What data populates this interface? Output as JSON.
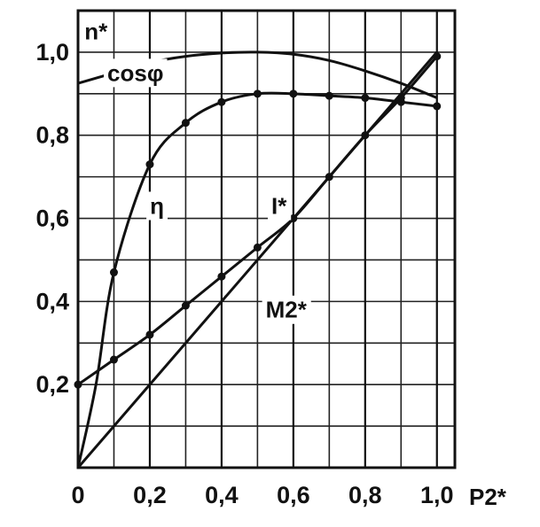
{
  "chart_data": {
    "type": "line",
    "xlabel": "P2*",
    "ylabel": "",
    "xlim": [
      0,
      1.05
    ],
    "ylim": [
      0,
      1.1
    ],
    "grid": true,
    "x_ticks": [
      "0",
      "0,2",
      "0,4",
      "0,6",
      "0,8",
      "1,0"
    ],
    "y_ticks": [
      "0,2",
      "0,4",
      "0,6",
      "0,8",
      "1,0"
    ],
    "series": [
      {
        "name": "n*",
        "marker": false,
        "x": [
          0.0,
          0.1,
          0.2,
          0.3,
          0.4,
          0.5,
          0.6,
          0.7,
          0.8,
          0.9,
          1.0
        ],
        "y": [
          0.925,
          0.95,
          0.975,
          0.99,
          0.998,
          1.0,
          0.995,
          0.98,
          0.955,
          0.925,
          0.89
        ]
      },
      {
        "name": "cosφ",
        "marker": true,
        "x": [
          0.1,
          0.2,
          0.3,
          0.4,
          0.5,
          0.6,
          0.7,
          0.8,
          0.9,
          1.0
        ],
        "y": [
          0.47,
          0.73,
          0.83,
          0.88,
          0.9,
          0.9,
          0.895,
          0.89,
          0.88,
          0.87
        ]
      },
      {
        "name": "I*",
        "marker": true,
        "x": [
          0.0,
          0.1,
          0.2,
          0.3,
          0.4,
          0.5,
          0.6,
          0.7,
          0.8,
          0.9,
          1.0
        ],
        "y": [
          0.2,
          0.26,
          0.32,
          0.39,
          0.46,
          0.53,
          0.6,
          0.7,
          0.8,
          0.89,
          0.99
        ]
      },
      {
        "name": "M2*",
        "marker": false,
        "x": [
          0.0,
          1.0
        ],
        "y": [
          0.0,
          1.0
        ]
      }
    ],
    "annotations": [
      {
        "text": "n*",
        "x": 0.05,
        "y": 1.05
      },
      {
        "text": "cosφ",
        "x": 0.16,
        "y": 0.95
      },
      {
        "text": "η",
        "x": 0.22,
        "y": 0.63
      },
      {
        "text": "I*",
        "x": 0.56,
        "y": 0.63
      },
      {
        "text": "M2*",
        "x": 0.58,
        "y": 0.38
      }
    ]
  }
}
